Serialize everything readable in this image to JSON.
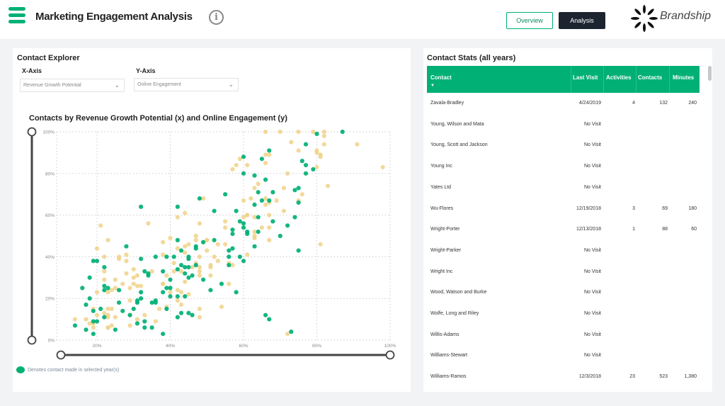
{
  "header": {
    "title": "Marketing Engagement Analysis",
    "info_icon": "info-circle-icon",
    "menu_icon": "hamburger-menu-icon",
    "nav": [
      {
        "label": "Overview",
        "active": false
      },
      {
        "label": "Analysis",
        "active": true
      }
    ],
    "brand": "Brandship"
  },
  "colors": {
    "accent": "#00b074",
    "dark": "#1c2430",
    "non_contact": "#f0d28a",
    "background": "#f2f3f5"
  },
  "explorer": {
    "title": "Contact Explorer",
    "x_axis_label": "X-Axis",
    "x_axis_value": "Revenue Growth Potential",
    "y_axis_label": "Y-Axis",
    "y_axis_value": "Online Engagement",
    "legend": "Denotes contact made in selected year(s)"
  },
  "chart_data": {
    "type": "scatter",
    "title": "Contacts by Revenue Growth Potential (x) and Online Engagement (y)",
    "xlabel": "",
    "ylabel": "",
    "xlim": [
      9,
      100
    ],
    "ylim": [
      0,
      100
    ],
    "x_ticks": [
      "20%",
      "40%",
      "60%",
      "80%",
      "100%"
    ],
    "y_ticks": [
      "0%",
      "20%",
      "40%",
      "60%",
      "80%",
      "100%"
    ],
    "grid": true,
    "series": [
      {
        "name": "Denotes contact made in selected year(s)",
        "color": "#00b074",
        "points": [
          [
            14,
            7
          ],
          [
            17,
            5
          ],
          [
            19,
            3
          ],
          [
            17,
            17
          ],
          [
            16,
            25
          ],
          [
            18,
            30
          ],
          [
            18,
            20
          ],
          [
            19,
            38
          ],
          [
            20,
            38
          ],
          [
            19,
            14
          ],
          [
            19,
            9
          ],
          [
            20,
            9
          ],
          [
            21,
            15
          ],
          [
            22,
            11
          ],
          [
            22,
            26
          ],
          [
            22,
            35
          ],
          [
            22,
            24
          ],
          [
            23,
            25
          ],
          [
            26,
            24
          ],
          [
            26,
            18
          ],
          [
            25,
            5
          ],
          [
            27,
            14
          ],
          [
            28,
            45
          ],
          [
            29,
            12
          ],
          [
            30,
            15
          ],
          [
            31,
            8
          ],
          [
            31,
            19
          ],
          [
            31,
            18
          ],
          [
            32,
            64
          ],
          [
            32,
            39
          ],
          [
            32,
            23
          ],
          [
            32,
            20
          ],
          [
            33,
            9
          ],
          [
            33,
            6
          ],
          [
            33,
            33
          ],
          [
            34,
            31
          ],
          [
            34,
            32
          ],
          [
            35,
            18
          ],
          [
            35,
            6
          ],
          [
            36,
            18
          ],
          [
            36,
            19
          ],
          [
            36,
            40
          ],
          [
            38,
            3
          ],
          [
            38,
            23
          ],
          [
            38,
            33
          ],
          [
            39,
            25
          ],
          [
            39,
            15
          ],
          [
            39,
            40
          ],
          [
            40,
            25
          ],
          [
            40,
            29
          ],
          [
            40,
            21
          ],
          [
            41,
            40
          ],
          [
            42,
            21
          ],
          [
            42,
            11
          ],
          [
            42,
            64
          ],
          [
            42,
            48
          ],
          [
            42,
            34
          ],
          [
            43,
            36
          ],
          [
            43,
            43
          ],
          [
            43,
            13
          ],
          [
            44,
            21
          ],
          [
            44,
            35
          ],
          [
            44,
            32
          ],
          [
            45,
            30
          ],
          [
            45,
            39
          ],
          [
            45,
            40
          ],
          [
            45,
            35
          ],
          [
            45,
            13
          ],
          [
            46,
            12
          ],
          [
            46,
            31
          ],
          [
            47,
            44
          ],
          [
            47,
            45
          ],
          [
            47,
            36
          ],
          [
            48,
            68
          ],
          [
            49,
            29
          ],
          [
            49,
            47
          ],
          [
            51,
            24
          ],
          [
            52,
            48
          ],
          [
            52,
            62
          ],
          [
            54,
            27
          ],
          [
            55,
            70
          ],
          [
            56,
            36
          ],
          [
            56,
            43
          ],
          [
            56,
            40
          ],
          [
            57,
            51
          ],
          [
            57,
            44
          ],
          [
            57,
            53
          ],
          [
            58,
            62
          ],
          [
            58,
            23
          ],
          [
            59,
            40
          ],
          [
            59,
            57
          ],
          [
            60,
            38
          ],
          [
            60,
            54
          ],
          [
            60,
            88
          ],
          [
            60,
            80
          ],
          [
            60,
            56
          ],
          [
            61,
            52
          ],
          [
            61,
            51
          ],
          [
            63,
            45
          ],
          [
            63,
            65
          ],
          [
            63,
            79
          ],
          [
            64,
            52
          ],
          [
            64,
            71
          ],
          [
            64,
            59
          ],
          [
            65,
            67
          ],
          [
            65,
            87
          ],
          [
            66,
            77
          ],
          [
            66,
            12
          ],
          [
            67,
            91
          ],
          [
            67,
            67
          ],
          [
            67,
            10
          ],
          [
            68,
            71
          ],
          [
            68,
            57
          ],
          [
            70,
            50
          ],
          [
            72,
            55
          ],
          [
            73,
            4
          ],
          [
            74,
            72
          ],
          [
            74,
            59
          ],
          [
            75,
            73
          ],
          [
            75,
            66
          ],
          [
            75,
            43
          ],
          [
            76,
            86
          ],
          [
            77,
            80
          ],
          [
            77,
            84
          ],
          [
            77,
            94
          ],
          [
            79,
            82
          ],
          [
            80,
            99
          ],
          [
            87,
            100
          ]
        ]
      },
      {
        "name": "",
        "color": "#f0d28a",
        "points": [
          [
            14,
            10
          ],
          [
            17,
            10
          ],
          [
            18,
            8
          ],
          [
            19,
            6
          ],
          [
            19,
            8
          ],
          [
            20,
            12
          ],
          [
            19,
            15
          ],
          [
            20,
            23
          ],
          [
            20,
            44
          ],
          [
            21,
            55
          ],
          [
            22,
            40
          ],
          [
            22,
            33
          ],
          [
            22,
            29
          ],
          [
            22,
            13
          ],
          [
            23,
            6
          ],
          [
            23,
            6
          ],
          [
            23,
            15
          ],
          [
            23,
            23
          ],
          [
            23,
            11
          ],
          [
            23,
            12
          ],
          [
            24,
            24
          ],
          [
            24,
            15
          ],
          [
            24,
            7
          ],
          [
            23,
            48
          ],
          [
            25,
            29
          ],
          [
            25,
            11
          ],
          [
            25,
            25
          ],
          [
            26,
            39
          ],
          [
            26,
            40
          ],
          [
            27,
            27
          ],
          [
            28,
            41
          ],
          [
            28,
            38
          ],
          [
            28,
            32
          ],
          [
            29,
            25
          ],
          [
            29,
            12
          ],
          [
            29,
            7
          ],
          [
            29,
            19
          ],
          [
            30,
            30
          ],
          [
            30,
            34
          ],
          [
            30,
            27
          ],
          [
            31,
            26
          ],
          [
            31,
            10
          ],
          [
            31,
            31
          ],
          [
            32,
            26
          ],
          [
            33,
            12
          ],
          [
            34,
            56
          ],
          [
            35,
            33
          ],
          [
            36,
            9
          ],
          [
            37,
            15
          ],
          [
            38,
            27
          ],
          [
            38,
            27
          ],
          [
            38,
            41
          ],
          [
            38,
            47
          ],
          [
            39,
            31
          ],
          [
            39,
            16
          ],
          [
            40,
            23
          ],
          [
            40,
            49
          ],
          [
            41,
            33
          ],
          [
            41,
            37
          ],
          [
            42,
            19
          ],
          [
            42,
            24
          ],
          [
            42,
            44
          ],
          [
            42,
            59
          ],
          [
            43,
            23
          ],
          [
            43,
            33
          ],
          [
            43,
            17
          ],
          [
            44,
            61
          ],
          [
            44,
            45
          ],
          [
            44,
            42
          ],
          [
            44,
            28
          ],
          [
            45,
            22
          ],
          [
            45,
            46
          ],
          [
            46,
            35
          ],
          [
            47,
            50
          ],
          [
            47,
            48
          ],
          [
            47,
            37
          ],
          [
            48,
            56
          ],
          [
            48,
            40
          ],
          [
            48,
            31
          ],
          [
            48,
            11
          ],
          [
            48,
            15
          ],
          [
            48,
            35
          ],
          [
            48,
            33
          ],
          [
            49,
            68
          ],
          [
            49,
            47
          ],
          [
            50,
            48
          ],
          [
            50,
            48
          ],
          [
            50,
            43
          ],
          [
            51,
            36
          ],
          [
            51,
            35
          ],
          [
            51,
            31
          ],
          [
            52,
            40
          ],
          [
            53,
            46
          ],
          [
            53,
            38
          ],
          [
            54,
            16
          ],
          [
            55,
            46
          ],
          [
            55,
            57
          ],
          [
            55,
            54
          ],
          [
            56,
            27
          ],
          [
            56,
            37
          ],
          [
            57,
            82
          ],
          [
            57,
            36
          ],
          [
            58,
            84
          ],
          [
            59,
            87
          ],
          [
            60,
            59
          ],
          [
            60,
            67
          ],
          [
            61,
            84
          ],
          [
            61,
            60
          ],
          [
            61,
            60
          ],
          [
            61,
            41
          ],
          [
            62,
            68
          ],
          [
            63,
            59
          ],
          [
            63,
            52
          ],
          [
            63,
            50
          ],
          [
            63,
            49
          ],
          [
            63,
            73
          ],
          [
            64,
            75
          ],
          [
            65,
            54
          ],
          [
            66,
            89
          ],
          [
            66,
            68
          ],
          [
            66,
            65
          ],
          [
            66,
            85
          ],
          [
            66,
            100
          ],
          [
            67,
            89
          ],
          [
            67,
            66
          ],
          [
            67,
            54
          ],
          [
            67,
            60
          ],
          [
            67,
            48
          ],
          [
            69,
            67
          ],
          [
            70,
            100
          ],
          [
            71,
            73
          ],
          [
            71,
            62
          ],
          [
            72,
            3
          ],
          [
            72,
            80
          ],
          [
            73,
            95
          ],
          [
            75,
            100
          ],
          [
            75,
            91
          ],
          [
            75,
            67
          ],
          [
            76,
            70
          ],
          [
            79,
            100
          ],
          [
            80,
            83
          ],
          [
            80,
            90
          ],
          [
            80,
            91
          ],
          [
            81,
            88
          ],
          [
            81,
            89
          ],
          [
            81,
            46
          ],
          [
            82,
            100
          ],
          [
            82,
            98
          ],
          [
            82,
            94
          ],
          [
            83,
            74
          ],
          [
            91,
            94
          ],
          [
            98,
            83
          ]
        ]
      }
    ]
  },
  "stats": {
    "title": "Contact Stats (all years)",
    "columns": [
      "Contact",
      "Last Visit",
      "Activities",
      "Contacts",
      "Minutes"
    ],
    "sort_icon": "sort-descending-icon",
    "rows": [
      [
        "Zavala-Bradley",
        "4/24/2019",
        "4",
        "132",
        "240"
      ],
      [
        "Young, Wilson and Mata",
        "No Visit",
        "",
        "",
        ""
      ],
      [
        "Young, Scott and Jackson",
        "No Visit",
        "",
        "",
        ""
      ],
      [
        "Young Inc",
        "No Visit",
        "",
        "",
        ""
      ],
      [
        "Yates Ltd",
        "No Visit",
        "",
        "",
        ""
      ],
      [
        "Wu-Flores",
        "12/19/2018",
        "3",
        "69",
        "180"
      ],
      [
        "Wright-Porter",
        "12/13/2018",
        "1",
        "88",
        "60"
      ],
      [
        "Wright-Parker",
        "No Visit",
        "",
        "",
        ""
      ],
      [
        "Wright Inc",
        "No Visit",
        "",
        "",
        ""
      ],
      [
        "Wood, Watson and Burke",
        "No Visit",
        "",
        "",
        ""
      ],
      [
        "Wolfe, Long and Riley",
        "No Visit",
        "",
        "",
        ""
      ],
      [
        "Willis-Adams",
        "No Visit",
        "",
        "",
        ""
      ],
      [
        "Williams-Stewart",
        "No Visit",
        "",
        "",
        ""
      ],
      [
        "Williams-Ramos",
        "12/3/2018",
        "23",
        "523",
        "1,380"
      ]
    ]
  }
}
